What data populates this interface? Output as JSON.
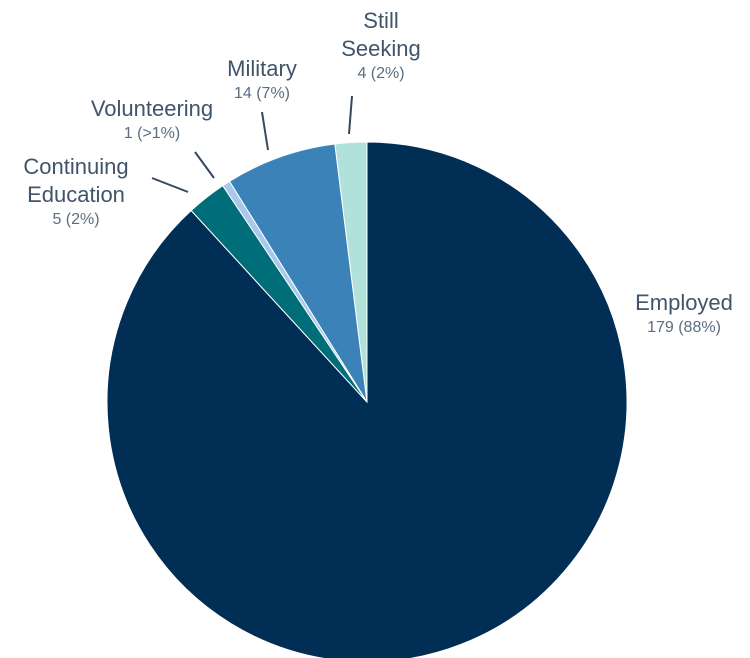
{
  "chart_data": {
    "type": "pie",
    "start_angle_deg": 0,
    "direction": "clockwise",
    "slices": [
      {
        "name": "Employed",
        "value_label": "179 (88%)",
        "value": 179,
        "color": "#002e54",
        "label_lines": [
          "Employed"
        ]
      },
      {
        "name": "Continuing Education",
        "value_label": "5 (2%)",
        "value": 5,
        "color": "#006e78",
        "label_lines": [
          "Continuing",
          "Education"
        ]
      },
      {
        "name": "Volunteering",
        "value_label": "1 (>1%)",
        "value": 1,
        "color": "#a7c9ec",
        "label_lines": [
          "Volunteering"
        ]
      },
      {
        "name": "Military",
        "value_label": "14 (7%)",
        "value": 14,
        "color": "#3a82b8",
        "label_lines": [
          "Military"
        ]
      },
      {
        "name": "Still Seeking",
        "value_label": "4 (2%)",
        "value": 4,
        "color": "#b0e1da",
        "label_lines": [
          "Still",
          "Seeking"
        ]
      }
    ]
  }
}
